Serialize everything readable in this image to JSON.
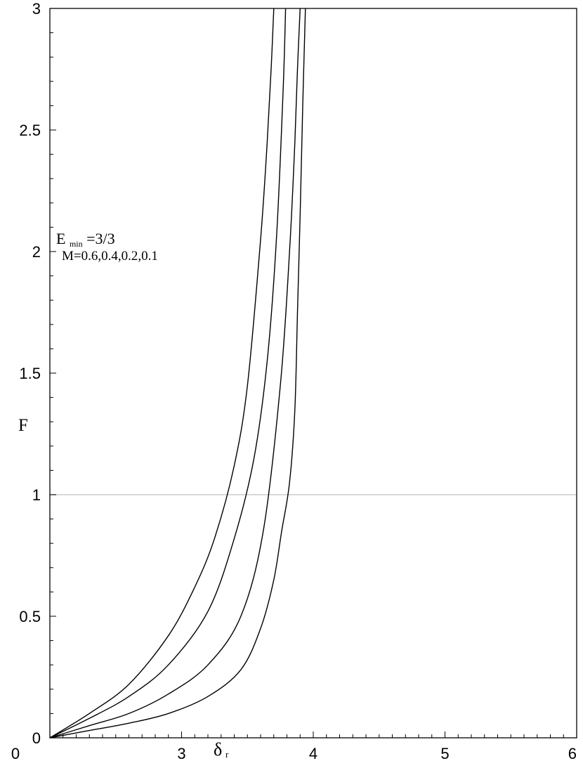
{
  "chart_data": {
    "type": "line",
    "xlabel": "δ",
    "xlabel_sub": "r",
    "ylabel": "F",
    "xlim": [
      2,
      6
    ],
    "ylim": [
      0,
      3
    ],
    "x_ticks": [
      3,
      4,
      5,
      6
    ],
    "y_ticks": [
      0,
      0.5,
      1,
      1.5,
      2,
      2.5,
      3
    ],
    "x_tick_labels": [
      "3",
      "4",
      "5",
      "6"
    ],
    "y_tick_labels": [
      "0",
      "0.5",
      "1",
      "1.5",
      "2",
      "2.5",
      "3"
    ],
    "reference_line": {
      "y": 1,
      "color": "#d9d9d9"
    },
    "grid": false,
    "annotation": {
      "line1_main": "E",
      "line1_sub": "min",
      "line1_rest": "=3/3",
      "line2": "M=0.6,0.4,0.2,0.1"
    },
    "series": [
      {
        "x": [
          2.0,
          2.3,
          2.6,
          2.9,
          3.1,
          3.25,
          3.4,
          3.5,
          3.6,
          3.65,
          3.68,
          3.7
        ],
        "y": [
          0.0,
          0.1,
          0.22,
          0.42,
          0.62,
          0.82,
          1.12,
          1.45,
          2.05,
          2.45,
          2.75,
          3.0
        ]
      },
      {
        "x": [
          2.0,
          2.3,
          2.6,
          2.9,
          3.2,
          3.4,
          3.55,
          3.65,
          3.72,
          3.77,
          3.79
        ],
        "y": [
          0.0,
          0.08,
          0.17,
          0.3,
          0.52,
          0.82,
          1.15,
          1.55,
          2.05,
          2.65,
          3.0
        ]
      },
      {
        "x": [
          2.0,
          2.3,
          2.6,
          2.9,
          3.2,
          3.45,
          3.62,
          3.75,
          3.82,
          3.86,
          3.88,
          3.9
        ],
        "y": [
          0.0,
          0.05,
          0.1,
          0.18,
          0.3,
          0.5,
          0.85,
          1.45,
          2.0,
          2.45,
          2.75,
          3.0
        ]
      },
      {
        "x": [
          2.0,
          2.3,
          2.6,
          2.9,
          3.2,
          3.45,
          3.6,
          3.7,
          3.76,
          3.82,
          3.86,
          3.88,
          3.9,
          3.92,
          3.94
        ],
        "y": [
          0.0,
          0.03,
          0.06,
          0.1,
          0.17,
          0.28,
          0.45,
          0.65,
          0.85,
          1.05,
          1.35,
          1.75,
          2.15,
          2.6,
          3.0
        ]
      }
    ],
    "line_color": "#000000"
  }
}
